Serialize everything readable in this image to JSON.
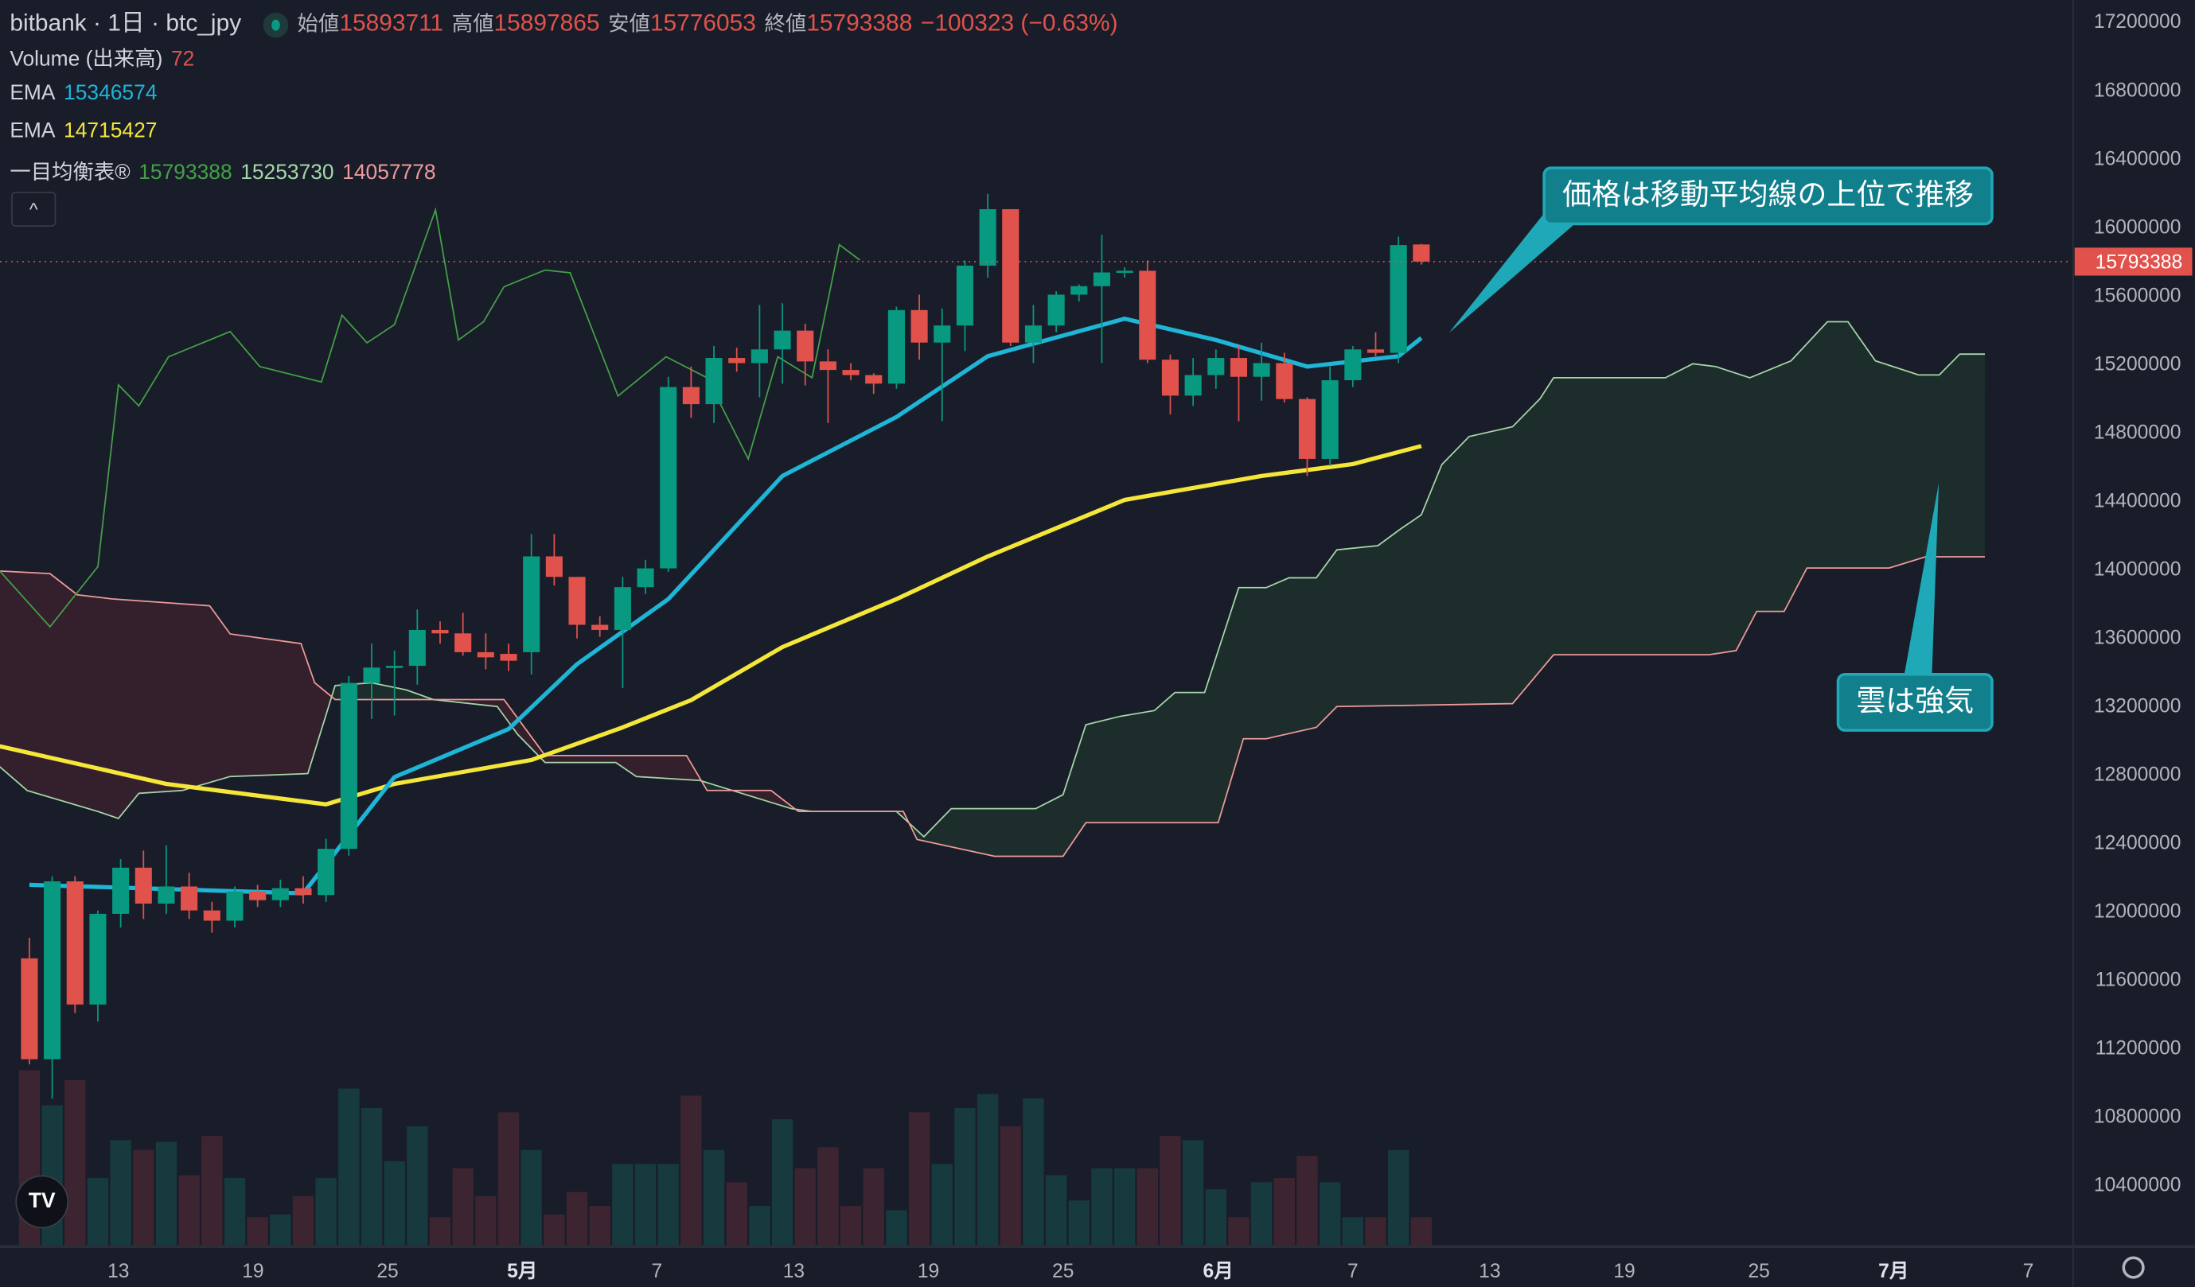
{
  "header": {
    "symbol": "bitbank · 1日 · btc_jpy",
    "open_label": "始値",
    "open": "15893711",
    "high_label": "高値",
    "high": "15897865",
    "low_label": "安値",
    "low": "15776053",
    "close_label": "終値",
    "close": "15793388",
    "change": "−100323 (−0.63%)"
  },
  "indicators": {
    "volume": {
      "label": "Volume (出来高)",
      "value": "72"
    },
    "ema_fast": {
      "label": "EMA",
      "value": "15346574"
    },
    "ema_slow": {
      "label": "EMA",
      "value": "14715427"
    },
    "ichimoku": {
      "label": "一目均衡表®",
      "v1": "15793388",
      "v2": "15253730",
      "v3": "14057778"
    }
  },
  "collapse_label": "^",
  "annotations": {
    "price_note": "価格は移動平均線の上位で推移",
    "cloud_note": "雲は強気"
  },
  "logo_text": "TV",
  "current_price_label": "15793388",
  "colors": {
    "up": "#089981",
    "down": "#e0524b",
    "ema_fast": "#1fb5d6",
    "ema_slow": "#f5e63a",
    "chikou": "#43a047",
    "senkou_a": "#a5d6a7",
    "senkou_b": "#ef9a9a",
    "bg": "#191d29"
  },
  "chart_data": {
    "type": "candlestick",
    "units": "thousand JPY",
    "y_ticks": [
      "17200000",
      "16800000",
      "16400000",
      "16000000",
      "15600000",
      "15200000",
      "14800000",
      "14400000",
      "14000000",
      "13600000",
      "13200000",
      "12800000",
      "12400000",
      "12000000",
      "11600000",
      "11200000",
      "10800000",
      "10400000"
    ],
    "ylim": [
      10200,
      17300
    ],
    "x_ticks": [
      {
        "day": 3.9,
        "label": "13"
      },
      {
        "day": 9.8,
        "label": "19"
      },
      {
        "day": 15.7,
        "label": "25"
      },
      {
        "day": 21.6,
        "label": "5月",
        "bold": true
      },
      {
        "day": 27.5,
        "label": "7"
      },
      {
        "day": 33.5,
        "label": "13"
      },
      {
        "day": 39.4,
        "label": "19"
      },
      {
        "day": 45.3,
        "label": "25"
      },
      {
        "day": 52.1,
        "label": "6月",
        "bold": true
      },
      {
        "day": 58.0,
        "label": "7"
      },
      {
        "day": 64.0,
        "label": "13"
      },
      {
        "day": 69.9,
        "label": "19"
      },
      {
        "day": 75.8,
        "label": "25"
      },
      {
        "day": 81.7,
        "label": "7月",
        "bold": true
      },
      {
        "day": 87.6,
        "label": "7"
      }
    ],
    "candles_ohlc": [
      [
        11720,
        11840,
        11100,
        11130
      ],
      [
        11130,
        12200,
        10900,
        12170
      ],
      [
        12170,
        12200,
        11400,
        11450
      ],
      [
        11450,
        12000,
        11350,
        11980
      ],
      [
        11980,
        12300,
        11900,
        12250
      ],
      [
        12250,
        12350,
        11950,
        12040
      ],
      [
        12040,
        12380,
        11980,
        12140
      ],
      [
        12140,
        12220,
        11950,
        12000
      ],
      [
        12000,
        12050,
        11870,
        11940
      ],
      [
        11940,
        12140,
        11900,
        12110
      ],
      [
        12110,
        12150,
        12020,
        12060
      ],
      [
        12060,
        12180,
        12020,
        12130
      ],
      [
        12130,
        12200,
        12040,
        12090
      ],
      [
        12090,
        12420,
        12050,
        12360
      ],
      [
        12360,
        13370,
        12320,
        13330
      ],
      [
        13330,
        13560,
        13120,
        13420
      ],
      [
        13420,
        13520,
        13140,
        13430
      ],
      [
        13430,
        13760,
        13320,
        13640
      ],
      [
        13640,
        13690,
        13560,
        13620
      ],
      [
        13620,
        13740,
        13490,
        13510
      ],
      [
        13510,
        13620,
        13410,
        13480
      ],
      [
        13500,
        13560,
        13400,
        13460
      ],
      [
        13510,
        14200,
        13380,
        14070
      ],
      [
        14070,
        14200,
        13900,
        13950
      ],
      [
        13950,
        13950,
        13590,
        13670
      ],
      [
        13670,
        13720,
        13600,
        13640
      ],
      [
        13640,
        13950,
        13300,
        13890
      ],
      [
        13890,
        14050,
        13850,
        14000
      ],
      [
        14000,
        15120,
        13980,
        15060
      ],
      [
        15060,
        15180,
        14880,
        14960
      ],
      [
        14960,
        15300,
        14850,
        15230
      ],
      [
        15230,
        15290,
        15150,
        15200
      ],
      [
        15200,
        15540,
        15000,
        15280
      ],
      [
        15280,
        15550,
        15080,
        15390
      ],
      [
        15390,
        15430,
        15070,
        15210
      ],
      [
        15210,
        15280,
        14850,
        15160
      ],
      [
        15160,
        15200,
        15100,
        15130
      ],
      [
        15130,
        15140,
        15020,
        15080
      ],
      [
        15080,
        15530,
        15050,
        15510
      ],
      [
        15510,
        15600,
        15220,
        15320
      ],
      [
        15320,
        15520,
        14860,
        15420
      ],
      [
        15420,
        15800,
        15270,
        15770
      ],
      [
        15770,
        16190,
        15700,
        16100
      ],
      [
        16100,
        16100,
        15300,
        15320
      ],
      [
        15320,
        15540,
        15200,
        15420
      ],
      [
        15420,
        15620,
        15380,
        15600
      ],
      [
        15600,
        15660,
        15560,
        15650
      ],
      [
        15650,
        15950,
        15200,
        15730
      ],
      [
        15730,
        15760,
        15700,
        15740
      ],
      [
        15740,
        15800,
        15200,
        15220
      ],
      [
        15220,
        15250,
        14900,
        15010
      ],
      [
        15010,
        15230,
        14950,
        15130
      ],
      [
        15130,
        15280,
        15050,
        15230
      ],
      [
        15230,
        15300,
        14860,
        15120
      ],
      [
        15120,
        15320,
        14980,
        15200
      ],
      [
        15200,
        15260,
        14970,
        14990
      ],
      [
        14990,
        15000,
        14540,
        14640
      ],
      [
        14640,
        15180,
        14600,
        15100
      ],
      [
        15100,
        15300,
        15060,
        15280
      ],
      [
        15280,
        15380,
        15240,
        15260
      ],
      [
        15260,
        15940,
        15200,
        15890
      ],
      [
        15893.711,
        15897.865,
        15776.053,
        15793.388
      ]
    ],
    "volume": [
      450,
      360,
      425,
      173,
      270,
      245,
      266,
      180,
      281,
      173,
      72,
      79,
      126,
      173,
      403,
      353,
      216,
      306,
      72,
      198,
      126,
      342,
      245,
      79,
      137,
      101,
      209,
      209,
      209,
      385,
      245,
      162,
      101,
      324,
      198,
      252,
      101,
      198,
      90,
      342,
      209,
      353,
      389,
      306,
      378,
      180,
      115,
      198,
      198,
      198,
      281,
      270,
      144,
      72,
      162,
      173,
      230,
      162,
      72,
      72,
      245,
      72
    ],
    "ema_fast": [
      [
        0,
        12150
      ],
      [
        12,
        12100
      ],
      [
        16,
        12780
      ],
      [
        21,
        13060
      ],
      [
        24,
        13440
      ],
      [
        28,
        13820
      ],
      [
        33,
        14540
      ],
      [
        38,
        14885
      ],
      [
        42,
        15240
      ],
      [
        48,
        15460
      ],
      [
        52,
        15335
      ],
      [
        56,
        15180
      ],
      [
        60,
        15240
      ],
      [
        61,
        15346.574
      ]
    ],
    "ema_slow": [
      [
        -1.3,
        12960
      ],
      [
        6,
        12740
      ],
      [
        13,
        12620
      ],
      [
        16,
        12740
      ],
      [
        22,
        12880
      ],
      [
        26,
        13070
      ],
      [
        29,
        13230
      ],
      [
        33,
        13540
      ],
      [
        38,
        13820
      ],
      [
        42,
        14070
      ],
      [
        48,
        14400
      ],
      [
        54,
        14540
      ],
      [
        58,
        14610
      ],
      [
        61,
        14715.427
      ]
    ],
    "chikou": [
      [
        -1.3,
        13985
      ],
      [
        0.9,
        13658
      ],
      [
        3.0,
        14010
      ],
      [
        3.9,
        15073
      ],
      [
        4.8,
        14950
      ],
      [
        6.1,
        15237
      ],
      [
        8.8,
        15384
      ],
      [
        10.1,
        15180
      ],
      [
        12.8,
        15090
      ],
      [
        13.7,
        15480
      ],
      [
        14.8,
        15319
      ],
      [
        16.0,
        15425
      ],
      [
        17.8,
        16096
      ],
      [
        18.8,
        15335
      ],
      [
        19.9,
        15442
      ],
      [
        20.8,
        15646
      ],
      [
        22.6,
        15744
      ],
      [
        23.7,
        15728
      ],
      [
        25.8,
        15008
      ],
      [
        27.9,
        15237
      ],
      [
        29.7,
        15114
      ],
      [
        31.5,
        14640
      ],
      [
        32.8,
        15237
      ],
      [
        34.3,
        15114
      ],
      [
        35.5,
        15892
      ],
      [
        36.4,
        15802
      ]
    ],
    "senkou_a": [
      [
        -1.3,
        12840
      ],
      [
        -0.1,
        12701
      ],
      [
        3.0,
        12579
      ],
      [
        3.9,
        12538
      ],
      [
        4.8,
        12685
      ],
      [
        6.7,
        12701
      ],
      [
        8.8,
        12783
      ],
      [
        12.2,
        12800
      ],
      [
        13.4,
        13315
      ],
      [
        15.0,
        13331
      ],
      [
        16.5,
        13290
      ],
      [
        17.7,
        13233
      ],
      [
        20.5,
        13192
      ],
      [
        21.4,
        13029
      ],
      [
        22.6,
        12865
      ],
      [
        25.7,
        12865
      ],
      [
        26.6,
        12783
      ],
      [
        29.4,
        12759
      ],
      [
        33.4,
        12595
      ],
      [
        34.3,
        12579
      ],
      [
        38.0,
        12579
      ],
      [
        39.2,
        12431
      ],
      [
        40.4,
        12595
      ],
      [
        44.1,
        12595
      ],
      [
        45.3,
        12677
      ],
      [
        46.3,
        13086
      ],
      [
        47.8,
        13135
      ],
      [
        49.3,
        13168
      ],
      [
        50.2,
        13274
      ],
      [
        51.5,
        13274
      ],
      [
        53.0,
        13887
      ],
      [
        54.2,
        13887
      ],
      [
        55.2,
        13945
      ],
      [
        56.4,
        13945
      ],
      [
        57.3,
        14108
      ],
      [
        59.1,
        14133
      ],
      [
        60.1,
        14231
      ],
      [
        61.0,
        14313
      ],
      [
        61.9,
        14607
      ],
      [
        63.1,
        14771
      ],
      [
        65.0,
        14828
      ],
      [
        66.2,
        14992
      ],
      [
        66.8,
        15114
      ],
      [
        71.7,
        15114
      ],
      [
        72.9,
        15196
      ],
      [
        73.9,
        15180
      ],
      [
        75.4,
        15114
      ],
      [
        77.2,
        15213
      ],
      [
        78.8,
        15442
      ],
      [
        79.7,
        15442
      ],
      [
        80.9,
        15213
      ],
      [
        82.8,
        15131
      ],
      [
        83.7,
        15131
      ],
      [
        84.6,
        15253
      ],
      [
        85.7,
        15253
      ]
    ],
    "senkou_b": [
      [
        -1.3,
        13985
      ],
      [
        0.9,
        13969
      ],
      [
        2.1,
        13846
      ],
      [
        3.6,
        13822
      ],
      [
        7.9,
        13781
      ],
      [
        8.8,
        13617
      ],
      [
        11.9,
        13560
      ],
      [
        12.5,
        13331
      ],
      [
        13.4,
        13233
      ],
      [
        20.8,
        13233
      ],
      [
        22.6,
        12906
      ],
      [
        28.8,
        12906
      ],
      [
        29.7,
        12701
      ],
      [
        32.5,
        12701
      ],
      [
        33.7,
        12579
      ],
      [
        38.3,
        12579
      ],
      [
        38.9,
        12415
      ],
      [
        42.3,
        12317
      ],
      [
        45.3,
        12317
      ],
      [
        46.3,
        12513
      ],
      [
        52.1,
        12513
      ],
      [
        53.2,
        13004
      ],
      [
        54.2,
        13004
      ],
      [
        56.4,
        13070
      ],
      [
        57.3,
        13192
      ],
      [
        65.0,
        13209
      ],
      [
        66.8,
        13495
      ],
      [
        73.6,
        13495
      ],
      [
        74.8,
        13519
      ],
      [
        75.7,
        13748
      ],
      [
        76.9,
        13748
      ],
      [
        77.9,
        14002
      ],
      [
        81.5,
        14002
      ],
      [
        83.1,
        14067
      ],
      [
        85.7,
        14067
      ]
    ]
  }
}
